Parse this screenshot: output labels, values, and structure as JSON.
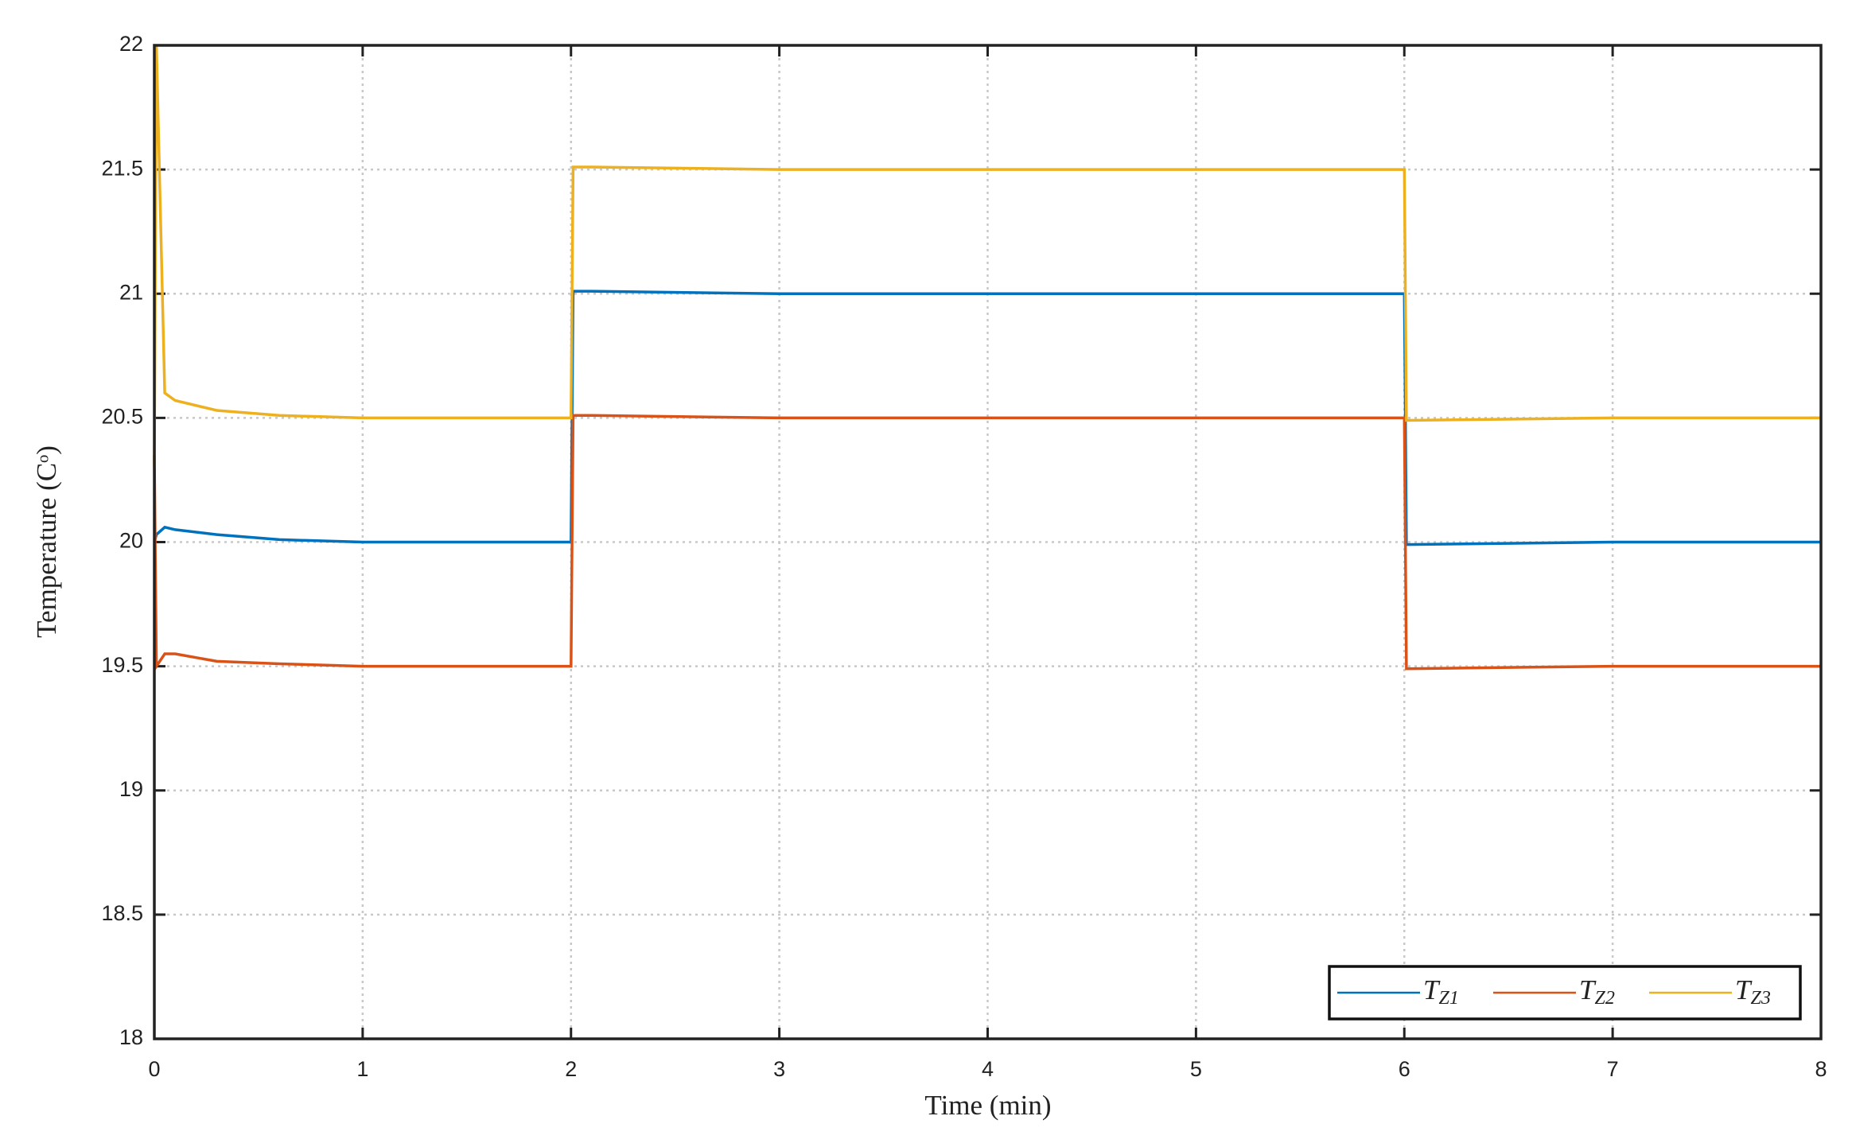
{
  "chart_data": {
    "type": "line",
    "xlabel": "Time (min)",
    "ylabel": "Temperature (Cᵒ)",
    "x": [
      0,
      0.01,
      0.05,
      0.1,
      0.3,
      0.6,
      1,
      1.5,
      2,
      2.01,
      2.1,
      3,
      4,
      5,
      6,
      6.01,
      7,
      8
    ],
    "series": [
      {
        "name": "TZ1",
        "color": "#0072bd",
        "values": [
          20.0,
          20.03,
          20.06,
          20.05,
          20.03,
          20.01,
          20.0,
          20.0,
          20.0,
          21.01,
          21.01,
          21.0,
          21.0,
          21.0,
          21.0,
          19.99,
          20.0,
          20.0
        ]
      },
      {
        "name": "TZ2",
        "color": "#d95319",
        "values": [
          20.35,
          19.5,
          19.55,
          19.55,
          19.52,
          19.51,
          19.5,
          19.5,
          19.5,
          20.51,
          20.51,
          20.5,
          20.5,
          20.5,
          20.5,
          19.49,
          19.5,
          19.5
        ]
      },
      {
        "name": "TZ3",
        "color": "#edb120",
        "values": [
          20.3,
          22.0,
          20.6,
          20.57,
          20.53,
          20.51,
          20.5,
          20.5,
          20.5,
          21.51,
          21.51,
          21.5,
          21.5,
          21.5,
          21.5,
          20.49,
          20.5,
          20.5
        ]
      }
    ],
    "xlim": [
      0,
      8
    ],
    "xticks": [
      0,
      1,
      2,
      3,
      4,
      5,
      6,
      7,
      8
    ],
    "ylim": [
      18,
      22
    ],
    "yticks": [
      18,
      18.5,
      19,
      19.5,
      20,
      20.5,
      21,
      21.5,
      22
    ],
    "grid": true,
    "legend": "lower right"
  }
}
